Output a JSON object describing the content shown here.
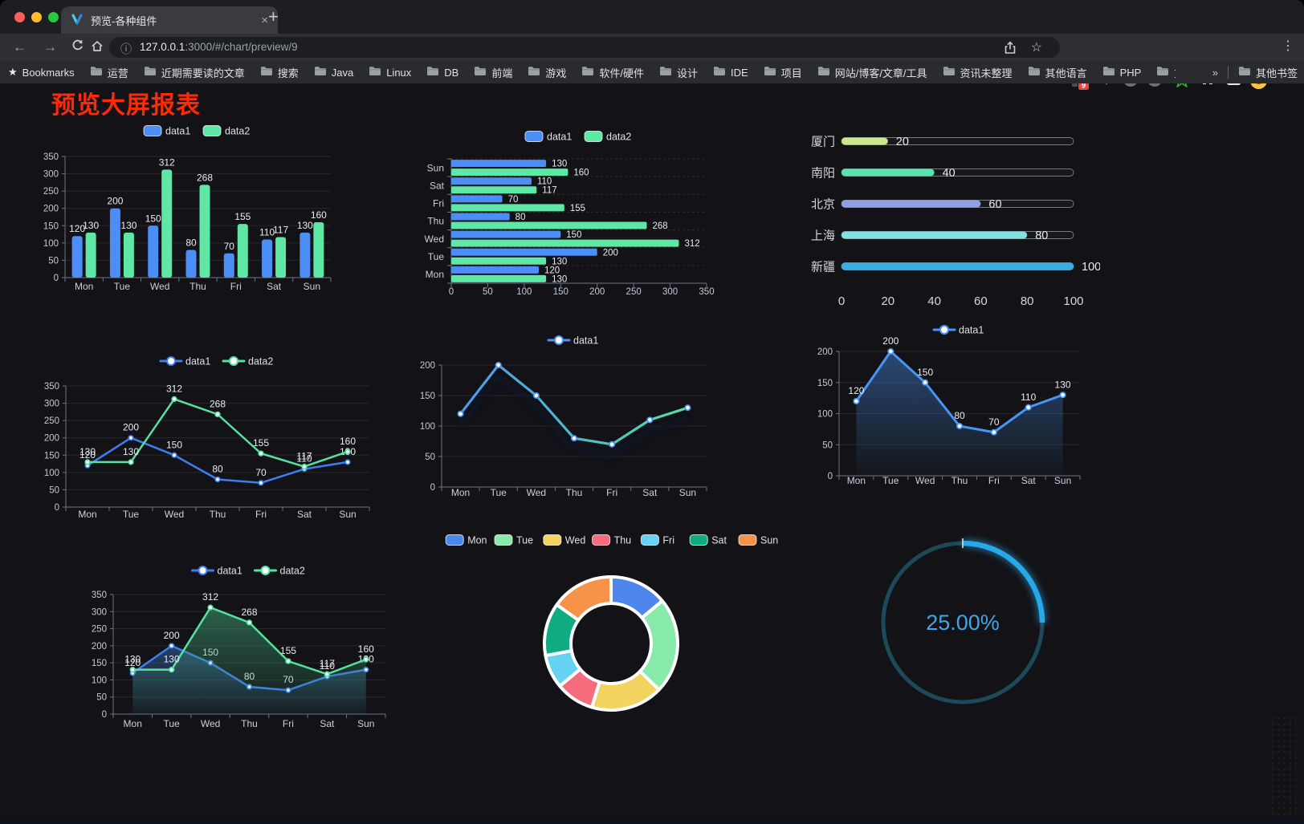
{
  "browser": {
    "tab_title": "预览-各种组件",
    "url_host": "127.0.0.1",
    "url_rest": ":3000/#/chart/preview/9",
    "new_tab_label": "+",
    "close_tab_label": "×",
    "bookmarks_label": "Bookmarks",
    "bookmarks": [
      "运营",
      "近期需要读的文章",
      "搜索",
      "Java",
      "Linux",
      "DB",
      "前端",
      "游戏",
      "软件/硬件",
      "设计",
      "IDE",
      "项目",
      "网站/博客/文章/工具",
      "资讯未整理",
      "其他语言",
      "PHP",
      "文件服务器"
    ],
    "overflow_chevron": "»",
    "other_bookmarks": "其他书签",
    "extension_badge": "9",
    "menu_glyph": "⋮"
  },
  "page": {
    "title": "预览大屏报表",
    "title_color": "#FB2B09"
  },
  "chart_data": [
    {
      "id": "bar-vertical",
      "type": "bar",
      "legend_position": "top",
      "categories": [
        "Mon",
        "Tue",
        "Wed",
        "Thu",
        "Fri",
        "Sat",
        "Sun"
      ],
      "series": [
        {
          "name": "data1",
          "color": "#4C8DF6",
          "values": [
            120,
            200,
            150,
            80,
            70,
            110,
            130
          ]
        },
        {
          "name": "data2",
          "color": "#5FE7A5",
          "values": [
            130,
            130,
            312,
            268,
            155,
            117,
            160
          ]
        }
      ],
      "ylim": [
        0,
        350
      ],
      "ystep": 50,
      "grid": true
    },
    {
      "id": "bar-horizontal",
      "type": "bar",
      "orientation": "horizontal",
      "legend_position": "top",
      "categories_top_to_bottom": [
        "Sun",
        "Sat",
        "Fri",
        "Thu",
        "Wed",
        "Tue",
        "Mon"
      ],
      "series": [
        {
          "name": "data1",
          "color": "#4C8DF6",
          "values": [
            130,
            110,
            70,
            80,
            150,
            200,
            120
          ]
        },
        {
          "name": "data2",
          "color": "#5FE7A5",
          "values": [
            160,
            117,
            155,
            268,
            312,
            130,
            130
          ]
        }
      ],
      "xlim": [
        0,
        350
      ],
      "xstep": 50,
      "grid": true
    },
    {
      "id": "progress",
      "type": "bar",
      "orientation": "horizontal-progress",
      "rows": [
        {
          "label": "厦门",
          "value": 20,
          "color": "#C8E88A"
        },
        {
          "label": "南阳",
          "value": 40,
          "color": "#5BE1AD"
        },
        {
          "label": "北京",
          "value": 60,
          "color": "#8F9FE8"
        },
        {
          "label": "上海",
          "value": 80,
          "color": "#80E2E3"
        },
        {
          "label": "新疆",
          "value": 100,
          "color": "#38AEE2"
        }
      ],
      "xlim": [
        0,
        100
      ],
      "xticks": [
        0,
        20,
        40,
        60,
        80,
        100
      ]
    },
    {
      "id": "line-two-series",
      "type": "line",
      "legend_position": "top",
      "point_labels": true,
      "categories": [
        "Mon",
        "Tue",
        "Wed",
        "Thu",
        "Fri",
        "Sat",
        "Sun"
      ],
      "series": [
        {
          "name": "data1",
          "color": "#3D7EF0",
          "values": [
            120,
            200,
            150,
            80,
            70,
            110,
            130
          ]
        },
        {
          "name": "data2",
          "color": "#55E2A0",
          "values": [
            130,
            130,
            312,
            268,
            155,
            117,
            160
          ]
        }
      ],
      "ylim": [
        0,
        350
      ],
      "ystep": 50,
      "grid": true
    },
    {
      "id": "line-gradient",
      "type": "line",
      "legend_position": "top",
      "point_labels": false,
      "shadow": true,
      "categories": [
        "Mon",
        "Tue",
        "Wed",
        "Thu",
        "Fri",
        "Sat",
        "Sun"
      ],
      "series": [
        {
          "name": "data1",
          "color": "#4D91F0",
          "gradient_stroke": [
            "#4D91F0",
            "#55E3A4"
          ],
          "values": [
            120,
            200,
            150,
            80,
            70,
            110,
            130
          ]
        }
      ],
      "ylim": [
        0,
        200
      ],
      "ystep": 50,
      "grid": true
    },
    {
      "id": "line-area",
      "type": "area",
      "legend_position": "top",
      "point_labels": true,
      "categories": [
        "Mon",
        "Tue",
        "Wed",
        "Thu",
        "Fri",
        "Sat",
        "Sun"
      ],
      "series": [
        {
          "name": "data1",
          "color": "#4796F5",
          "area_fill": [
            "rgba(60,120,195,0.55)",
            "rgba(60,120,195,0.03)"
          ],
          "values": [
            120,
            200,
            150,
            80,
            70,
            110,
            130
          ]
        }
      ],
      "ylim": [
        0,
        200
      ],
      "ystep": 50,
      "grid": true
    },
    {
      "id": "area-two-series",
      "type": "area",
      "legend_position": "top",
      "point_labels": true,
      "categories": [
        "Mon",
        "Tue",
        "Wed",
        "Thu",
        "Fri",
        "Sat",
        "Sun"
      ],
      "series": [
        {
          "name": "data1",
          "color": "#3D7EF0",
          "area_fill": [
            "rgba(56,110,185,0.50)",
            "rgba(56,110,185,0.04)"
          ],
          "values": [
            120,
            200,
            150,
            80,
            70,
            110,
            130
          ]
        },
        {
          "name": "data2",
          "color": "#55E2A0",
          "area_fill": [
            "rgba(62,160,115,0.55)",
            "rgba(62,160,115,0.04)"
          ],
          "values": [
            130,
            130,
            312,
            268,
            155,
            117,
            160
          ]
        }
      ],
      "ylim": [
        0,
        350
      ],
      "ystep": 50,
      "grid": true
    },
    {
      "id": "donut",
      "type": "pie",
      "legend_position": "top",
      "items": [
        {
          "label": "Mon",
          "value": 120,
          "color": "#4D86EC"
        },
        {
          "label": "Tue",
          "value": 200,
          "color": "#88EBAC"
        },
        {
          "label": "Wed",
          "value": 150,
          "color": "#F2D35F"
        },
        {
          "label": "Thu",
          "value": 80,
          "color": "#F76C7D"
        },
        {
          "label": "Fri",
          "value": 70,
          "color": "#66D2F4"
        },
        {
          "label": "Sat",
          "value": 110,
          "color": "#10AC81"
        },
        {
          "label": "Sun",
          "value": 130,
          "color": "#F79348"
        }
      ]
    },
    {
      "id": "gauge",
      "type": "gauge",
      "percent": 25,
      "label": "25.00%",
      "color": "#29A8E9",
      "track_color": "#1D4A59",
      "text_color": "#3FA7E8"
    }
  ]
}
